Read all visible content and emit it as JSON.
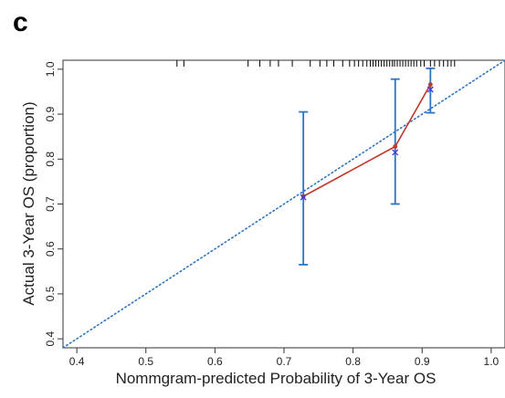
{
  "panel_label": "c",
  "chart_data": {
    "type": "scatter",
    "title": "",
    "xlabel": "Nommgram-predicted Probability of 3-Year OS",
    "ylabel": "Actual 3-Year OS (proportion)",
    "xlim": [
      0.38,
      1.02
    ],
    "ylim": [
      0.38,
      1.02
    ],
    "x_ticks": [
      "0.4",
      "0.5",
      "0.6",
      "0.7",
      "0.8",
      "0.9",
      "1.0"
    ],
    "y_ticks": [
      "0.4",
      "0.5",
      "0.6",
      "0.7",
      "0.8",
      "0.9",
      "1.0"
    ],
    "grid": false,
    "series": [
      {
        "type": "line-with-markers",
        "color": "#c0392b",
        "marker": "dot",
        "points": [
          {
            "x": 0.728,
            "y": 0.717
          },
          {
            "x": 0.861,
            "y": 0.828
          },
          {
            "x": 0.912,
            "y": 0.966
          }
        ]
      },
      {
        "type": "error-bars",
        "color": "#2e74c0",
        "bars": [
          {
            "x": 0.728,
            "low": 0.565,
            "high": 0.905
          },
          {
            "x": 0.861,
            "low": 0.7,
            "high": 0.978
          },
          {
            "x": 0.912,
            "low": 0.903,
            "high": 1.002
          }
        ]
      },
      {
        "type": "scatter",
        "color": "#3b3bdc",
        "marker": "x",
        "points": [
          {
            "x": 0.728,
            "y": 0.715
          },
          {
            "x": 0.861,
            "y": 0.815
          },
          {
            "x": 0.912,
            "y": 0.955
          }
        ]
      },
      {
        "type": "reference-line",
        "style": "dotted",
        "color": "#2e74c0",
        "points": [
          {
            "x": 0.38,
            "y": 0.38
          },
          {
            "x": 1.02,
            "y": 1.02
          }
        ]
      }
    ],
    "rug": {
      "color": "#000000",
      "x": [
        0.545,
        0.555,
        0.648,
        0.665,
        0.68,
        0.692,
        0.712,
        0.738,
        0.752,
        0.762,
        0.772,
        0.785,
        0.795,
        0.802,
        0.808,
        0.814,
        0.82,
        0.825,
        0.829,
        0.833,
        0.837,
        0.841,
        0.845,
        0.849,
        0.853,
        0.857,
        0.86,
        0.864,
        0.868,
        0.872,
        0.876,
        0.88,
        0.884,
        0.888,
        0.892,
        0.898,
        0.903,
        0.912,
        0.918,
        0.925,
        0.931,
        0.937,
        0.942,
        0.947
      ]
    }
  }
}
